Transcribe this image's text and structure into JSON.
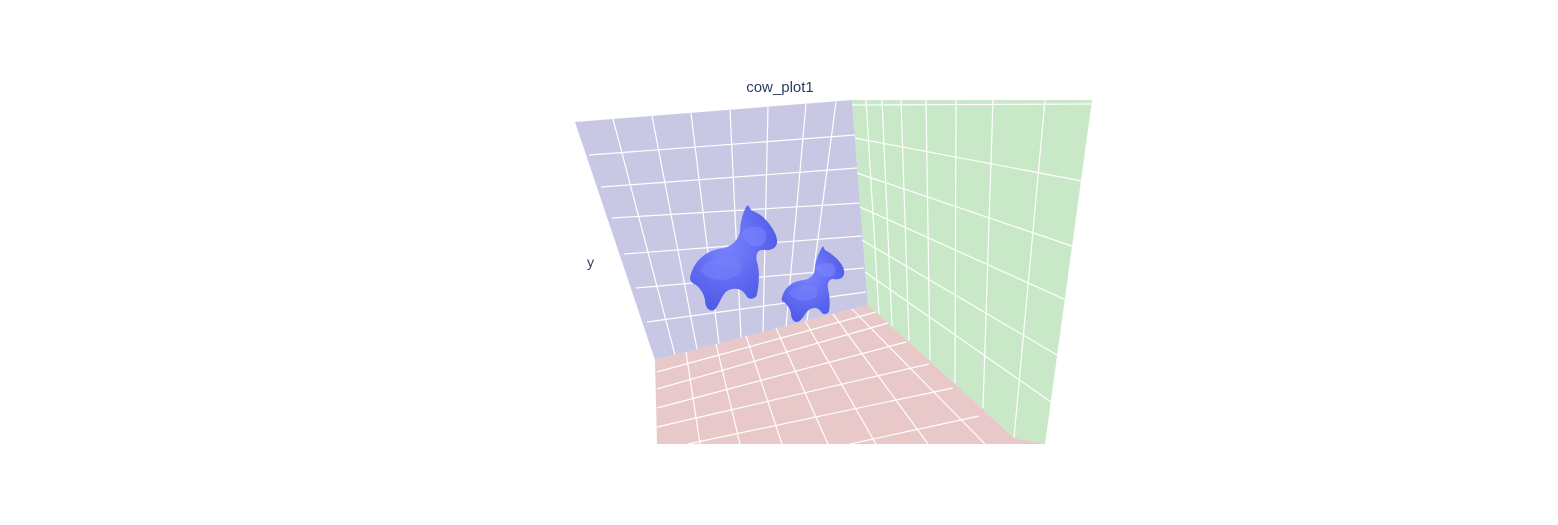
{
  "chart_data": {
    "type": "mesh3d",
    "title": "cow_plot1",
    "axes": {
      "xlabel": "",
      "ylabel": "y",
      "zlabel": ""
    },
    "grid": true,
    "legend": "none",
    "series": [
      {
        "color": "#636efa"
      },
      {
        "color": "#636efa"
      }
    ],
    "colors": {
      "back_wall": "#c8c8e4",
      "side_wall": "#c8e8c8",
      "floor": "#e8c8c8",
      "grid": "#ffffff",
      "mesh": "#636efa",
      "mesh_shade": "#4c57e6",
      "mesh_light": "#7b84ff",
      "text": "#2a3f5f"
    }
  }
}
